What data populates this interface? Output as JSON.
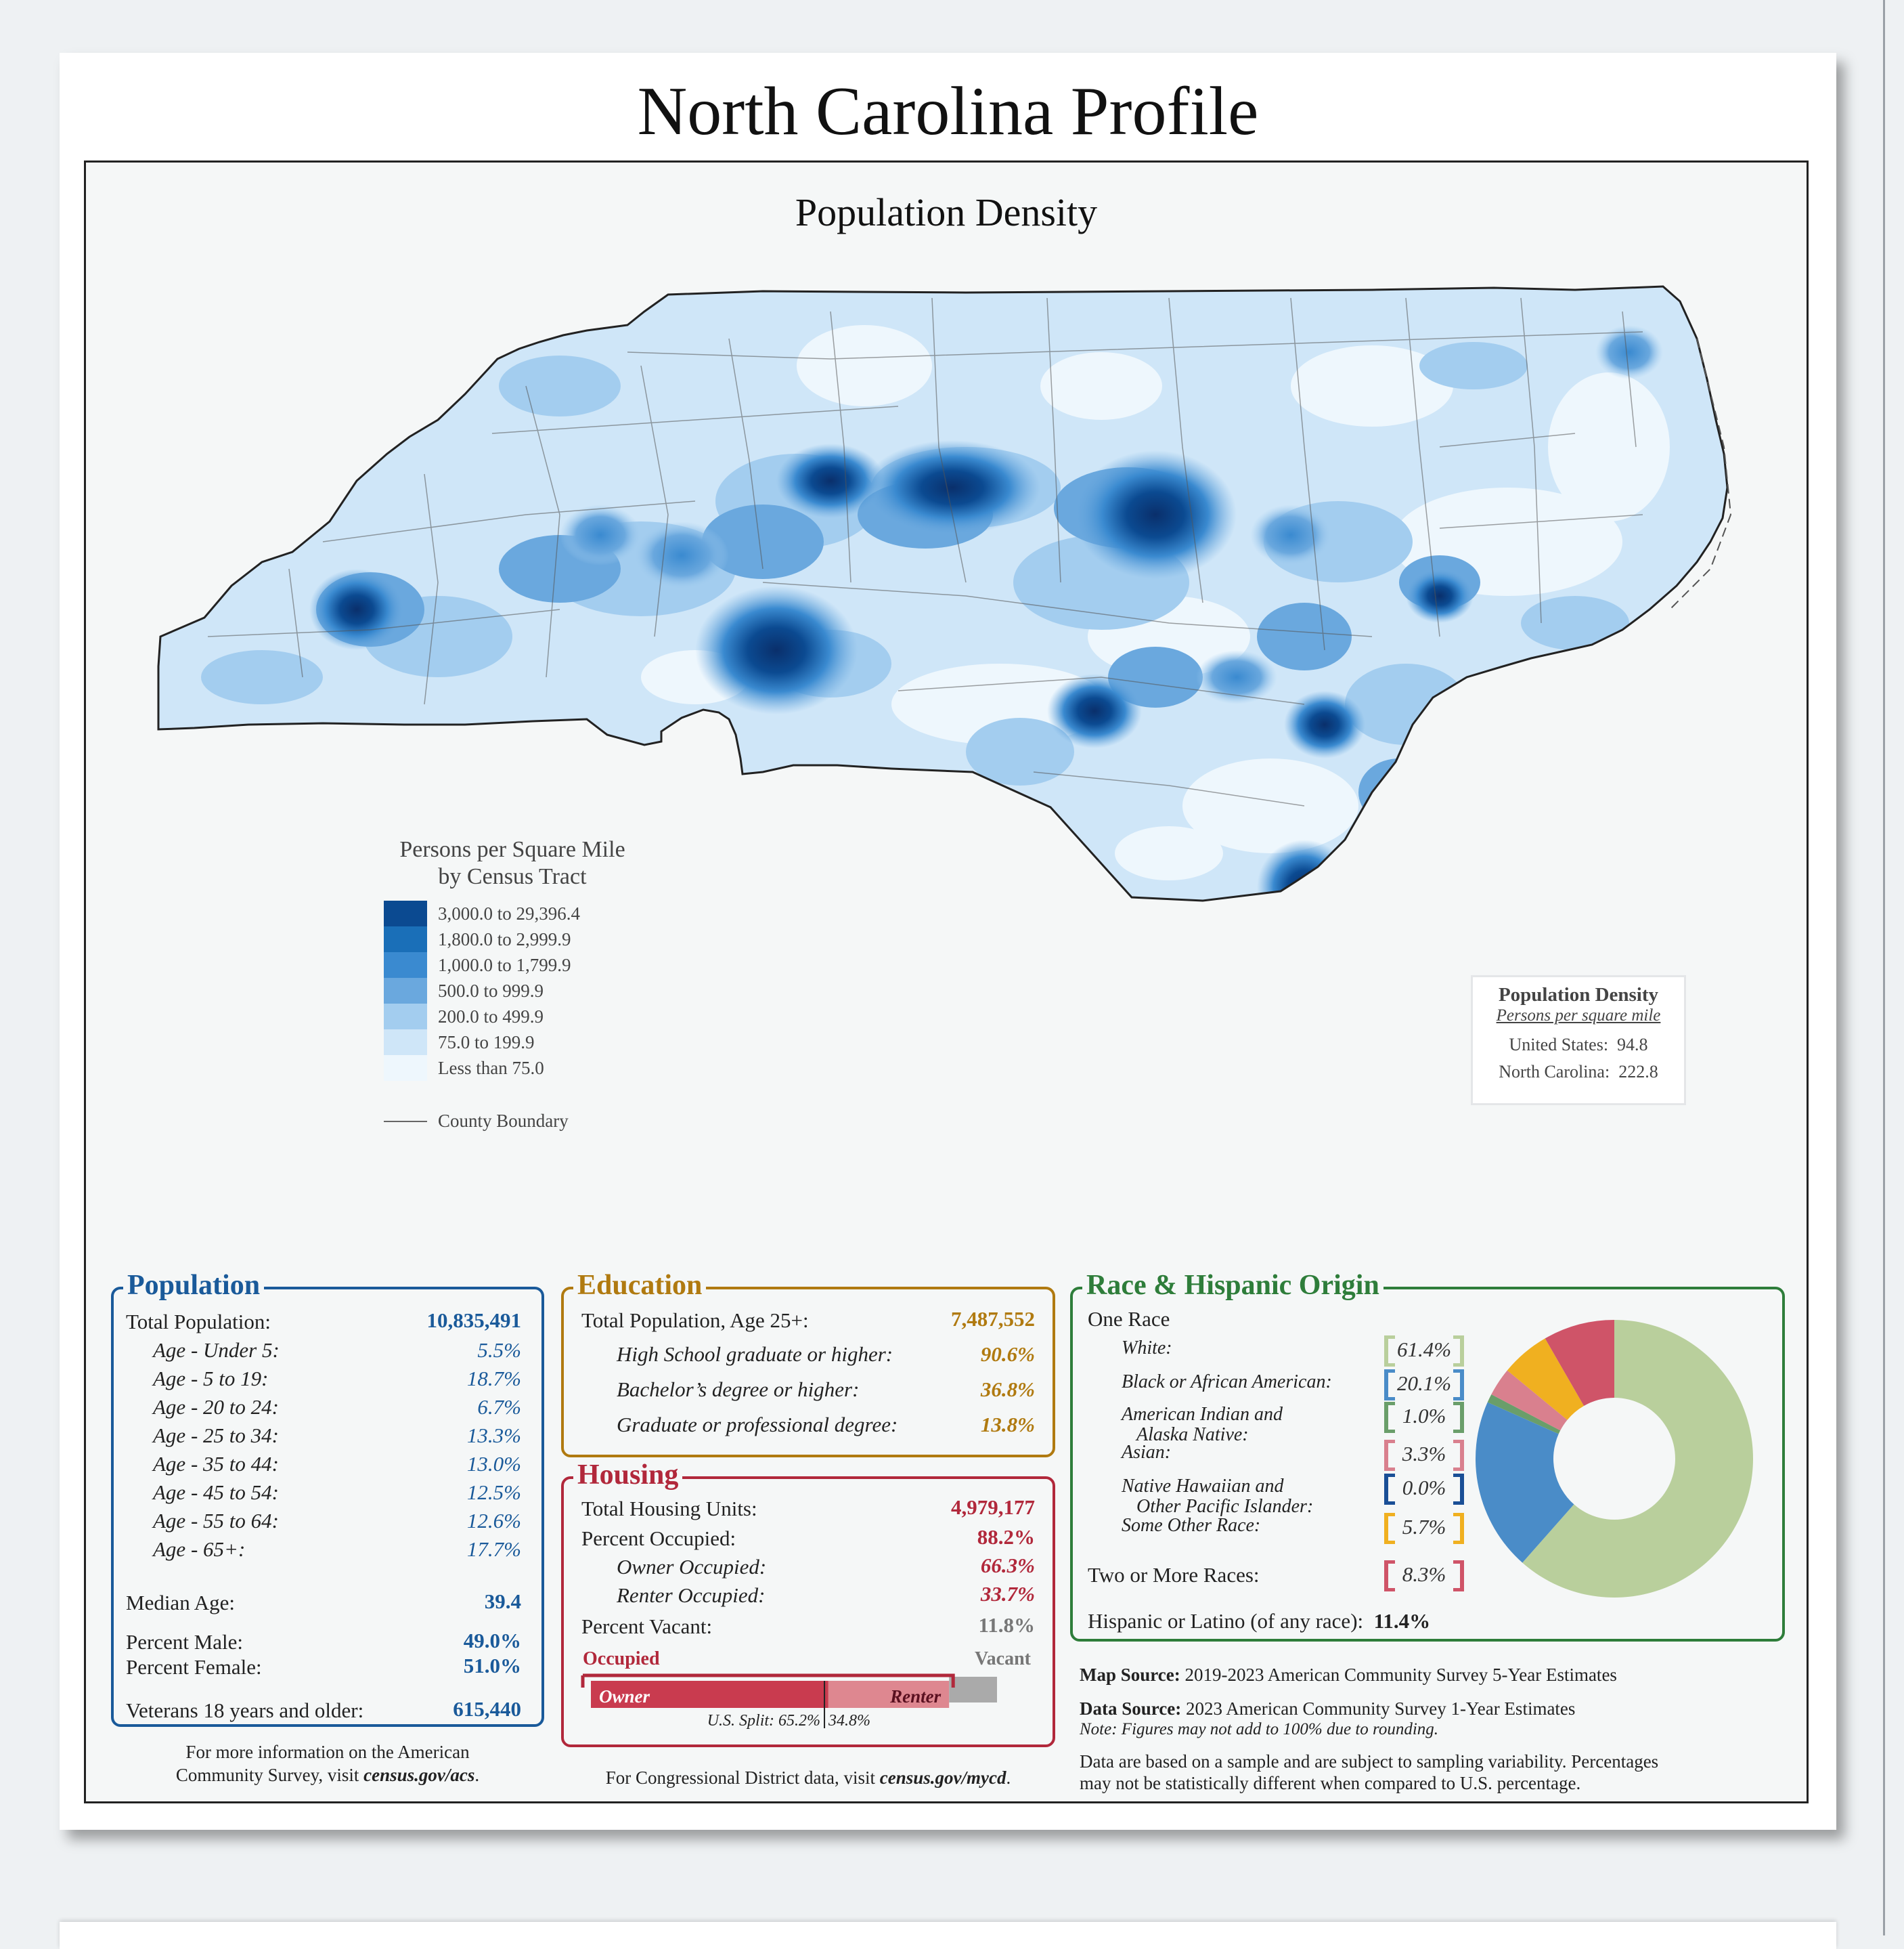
{
  "title": "North Carolina Profile",
  "map": {
    "title": "Population Density",
    "legend": {
      "title_line1": "Persons per Square Mile",
      "title_line2": "by Census Tract",
      "classes": [
        {
          "label": "3,000.0 to 29,396.4",
          "color": "#0b4a91"
        },
        {
          "label": "1,800.0 to 2,999.9",
          "color": "#1a6fb8"
        },
        {
          "label": "1,000.0 to 1,799.9",
          "color": "#3a8ad0"
        },
        {
          "label": "500.0 to 999.9",
          "color": "#6aa8de"
        },
        {
          "label": "200.0 to 499.9",
          "color": "#a3cdef"
        },
        {
          "label": "75.0 to 199.9",
          "color": "#cfe6f8"
        },
        {
          "label": "Less than 75.0",
          "color": "#eef7fd"
        }
      ],
      "county_boundary": "County Boundary"
    },
    "density_box": {
      "title": "Population Density",
      "subtitle": "Persons per square mile",
      "us_label": "United States:",
      "us_value": "94.8",
      "nc_label": "North Carolina:",
      "nc_value": "222.8"
    }
  },
  "population": {
    "title": "Population",
    "total_label": "Total Population:",
    "total_value": "10,835,491",
    "ages": [
      {
        "label": "Age - Under 5:",
        "value": "5.5%"
      },
      {
        "label": "Age - 5 to 19:",
        "value": "18.7%"
      },
      {
        "label": "Age - 20 to 24:",
        "value": "6.7%"
      },
      {
        "label": "Age - 25 to 34:",
        "value": "13.3%"
      },
      {
        "label": "Age - 35 to 44:",
        "value": "13.0%"
      },
      {
        "label": "Age - 45 to 54:",
        "value": "12.5%"
      },
      {
        "label": "Age - 55 to 64:",
        "value": "12.6%"
      },
      {
        "label": "Age - 65+:",
        "value": "17.7%"
      }
    ],
    "median_label": "Median Age:",
    "median_value": "39.4",
    "male_label": "Percent Male:",
    "male_value": "49.0%",
    "female_label": "Percent Female:",
    "female_value": "51.0%",
    "veterans_label": "Veterans 18 years and older:",
    "veterans_value": "615,440",
    "info_line1": "For more information on the American",
    "info_line2_pre": "Community Survey, visit ",
    "info_link": "census.gov/acs",
    "info_post": "."
  },
  "education": {
    "title": "Education",
    "total_label": "Total Population, Age 25+:",
    "total_value": "7,487,552",
    "rows": [
      {
        "label": "High School  graduate or higher:",
        "value": "90.6%"
      },
      {
        "label": "Bachelor’s degree or higher:",
        "value": "36.8%"
      },
      {
        "label": "Graduate or professional degree:",
        "value": "13.8%"
      }
    ]
  },
  "housing": {
    "title": "Housing",
    "units_label": "Total Housing Units:",
    "units_value": "4,979,177",
    "occupied_label": "Percent Occupied:",
    "occupied_value": "88.2%",
    "owner_label": "Owner Occupied:",
    "owner_value": "66.3%",
    "renter_label": "Renter Occupied:",
    "renter_value": "33.7%",
    "vacant_label": "Percent Vacant:",
    "vacant_value": "11.8%",
    "bar": {
      "occupied_text": "Occupied",
      "vacant_text": "Vacant",
      "owner_text": "Owner",
      "renter_text": "Renter",
      "occupied_fraction": 0.882,
      "owner_fraction": 0.663,
      "us_split_label": "U.S. Split: 65.2%",
      "us_split_renter": "34.8%",
      "us_owner_fraction": 0.652
    },
    "cd_pre": "For Congressional District data, visit ",
    "cd_link": "census.gov/mycd",
    "cd_post": "."
  },
  "race": {
    "title": "Race & Hispanic Origin",
    "one_race": "One Race",
    "rows": [
      {
        "label": "White:",
        "value": "61.4%",
        "color": "#b9cf9c"
      },
      {
        "label": "Black or African American:",
        "value": "20.1%",
        "color": "#4a8cc8"
      },
      {
        "label": "American Indian and",
        "label2": "Alaska Native:",
        "value": "1.0%",
        "color": "#6a9e6a"
      },
      {
        "label": "Asian:",
        "value": "3.3%",
        "color": "#d9808e"
      },
      {
        "label": "Native Hawaiian and",
        "label2": "Other Pacific Islander:",
        "value": "0.0%",
        "color": "#1a4f96"
      },
      {
        "label": "Some Other Race:",
        "value": "5.7%",
        "color": "#f0b020"
      }
    ],
    "two_more_label": "Two or More Races:",
    "two_more_value": "8.3%",
    "two_more_color": "#cf5468",
    "hispanic_label": "Hispanic or Latino (of any race):",
    "hispanic_value": "11.4%",
    "donut": [
      61.4,
      20.1,
      1.0,
      3.3,
      0.0,
      5.7,
      8.3
    ]
  },
  "sources": {
    "map_label": "Map Source:",
    "map_text": "2019-2023 American Community Survey 5-Year Estimates",
    "data_label": "Data Source:",
    "data_text": "2023 American Community Survey 1-Year Estimates",
    "note": "Note: Figures may not add to 100% due to rounding.",
    "sample_line1": "Data are based on a sample and are subject to sampling variability. Percentages",
    "sample_line2": "may not be statistically different when compared to U.S. percentage."
  }
}
